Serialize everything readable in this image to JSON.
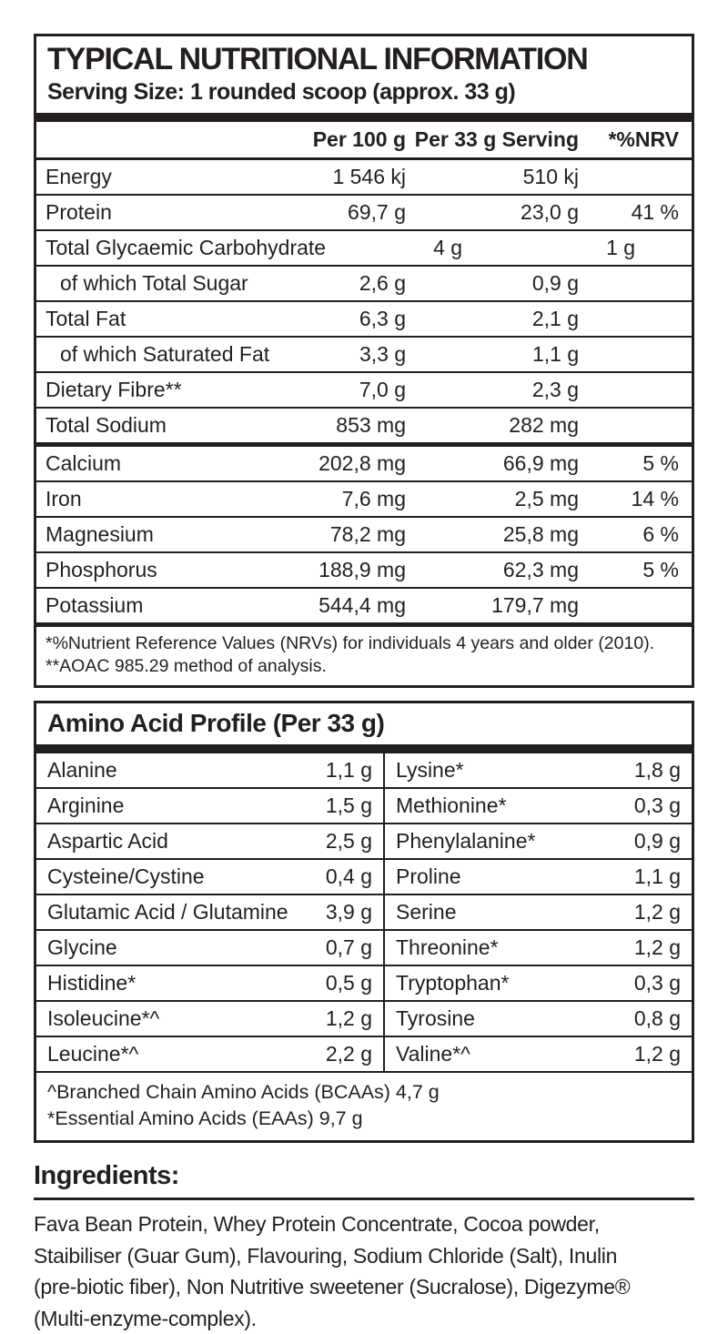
{
  "colors": {
    "ink": "#231f20",
    "background": "#ffffff"
  },
  "panel": {
    "title": "TYPICAL NUTRITIONAL INFORMATION",
    "serving_size": "Serving Size: 1 rounded scoop (approx. 33 g)",
    "columns": {
      "per100": "Per 100 g",
      "per_serving": "Per 33 g Serving",
      "nrv": "*%NRV"
    },
    "rows": [
      {
        "label": "Energy",
        "per100": "1 546 kj",
        "serving": "510 kj",
        "nrv": ""
      },
      {
        "label": "Protein",
        "per100": "69,7 g",
        "serving": "23,0 g",
        "nrv": "41 %"
      },
      {
        "label": "Total Glycaemic Carbohydrate",
        "per100": "4 g",
        "serving": "1 g",
        "nrv": ""
      },
      {
        "label": "of which Total Sugar",
        "per100": "2,6 g",
        "serving": "0,9 g",
        "nrv": ""
      },
      {
        "label": "Total Fat",
        "per100": "6,3 g",
        "serving": "2,1 g",
        "nrv": ""
      },
      {
        "label": "of which Saturated Fat",
        "per100": "3,3 g",
        "serving": "1,1 g",
        "nrv": ""
      },
      {
        "label": "Dietary Fibre**",
        "per100": "7,0 g",
        "serving": "2,3 g",
        "nrv": ""
      },
      {
        "label": "Total Sodium",
        "per100": "853 mg",
        "serving": "282 mg",
        "nrv": ""
      },
      {
        "label": "Calcium",
        "per100": "202,8 mg",
        "serving": "66,9 mg",
        "nrv": "5 %"
      },
      {
        "label": "Iron",
        "per100": "7,6 mg",
        "serving": "2,5 mg",
        "nrv": "14 %"
      },
      {
        "label": "Magnesium",
        "per100": "78,2 mg",
        "serving": "25,8 mg",
        "nrv": "6 %"
      },
      {
        "label": "Phosphorus",
        "per100": "188,9 mg",
        "serving": "62,3 mg",
        "nrv": "5 %"
      },
      {
        "label": "Potassium",
        "per100": "544,4 mg",
        "serving": "179,7 mg",
        "nrv": ""
      }
    ],
    "notes": [
      "*%Nutrient Reference Values (NRVs) for individuals 4 years and older (2010).",
      "**AOAC 985.29 method of analysis."
    ]
  },
  "amino": {
    "title": "Amino Acid Profile (Per 33 g)",
    "rows": [
      {
        "l_name": "Alanine",
        "l_value": "1,1 g",
        "r_name": "Lysine*",
        "r_value": "1,8 g"
      },
      {
        "l_name": "Arginine",
        "l_value": "1,5 g",
        "r_name": "Methionine*",
        "r_value": "0,3 g"
      },
      {
        "l_name": "Aspartic Acid",
        "l_value": "2,5 g",
        "r_name": "Phenylalanine*",
        "r_value": "0,9 g"
      },
      {
        "l_name": "Cysteine/Cystine",
        "l_value": "0,4 g",
        "r_name": "Proline",
        "r_value": "1,1 g"
      },
      {
        "l_name": "Glutamic Acid / Glutamine",
        "l_value": "3,9 g",
        "r_name": "Serine",
        "r_value": "1,2 g"
      },
      {
        "l_name": "Glycine",
        "l_value": "0,7 g",
        "r_name": "Threonine*",
        "r_value": "1,2 g"
      },
      {
        "l_name": "Histidine*",
        "l_value": "0,5 g",
        "r_name": "Tryptophan*",
        "r_value": "0,3 g"
      },
      {
        "l_name": "Isoleucine*^",
        "l_value": "1,2 g",
        "r_name": "Tyrosine",
        "r_value": "0,8 g"
      },
      {
        "l_name": "Leucine*^",
        "l_value": "2,2 g",
        "r_name": "Valine*^",
        "r_value": "1,2 g"
      }
    ],
    "notes": [
      "^Branched Chain Amino Acids (BCAAs) 4,7 g",
      "*Essential Amino Acids (EAAs) 9,7 g"
    ]
  },
  "ingredients": {
    "heading": "Ingredients:",
    "lines": [
      "Fava Bean Protein, Whey Protein Concentrate, Cocoa powder,",
      "Staibiliser (Guar Gum), Flavouring, Sodium Chloride (Salt),  Inulin",
      "(pre-biotic fiber), Non Nutritive sweetener (Sucralose), Digezyme®",
      "(Multi-enzyme-complex)."
    ]
  }
}
